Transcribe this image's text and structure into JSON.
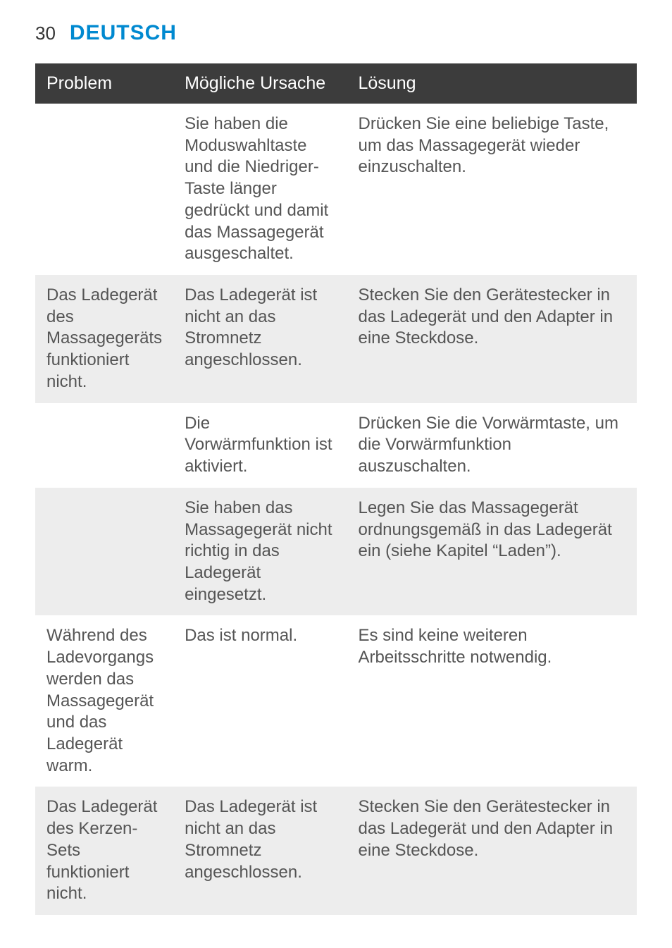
{
  "header": {
    "page_number": "30",
    "section_title": "DEUTSCH",
    "title_color": "#0089d0",
    "page_number_color": "#333333",
    "title_fontsize": 30,
    "page_number_fontsize": 26
  },
  "table": {
    "header_bg": "#3c3c3c",
    "header_text_color": "#ffffff",
    "header_fontsize": 25,
    "body_fontsize": 24,
    "body_text_color": "#555555",
    "row_light_bg": "#ffffff",
    "row_dark_bg": "#ededed",
    "columns": [
      {
        "key": "problem",
        "label": "Problem",
        "width": "22%"
      },
      {
        "key": "cause",
        "label": "Mögliche Ursache",
        "width": "29%"
      },
      {
        "key": "solution",
        "label": "Lösung",
        "width": "49%"
      }
    ],
    "rows": [
      {
        "shade": "light",
        "problem": "",
        "cause": "Sie haben die Moduswahltaste und die Niedriger-Taste länger gedrückt und damit das Massagegerät ausgeschaltet.",
        "solution": "Drücken Sie eine beliebige Taste, um das Massagegerät wieder einzuschalten."
      },
      {
        "shade": "dark",
        "problem": "Das Ladegerät des Massagegeräts funktioniert nicht.",
        "cause": "Das Ladegerät ist nicht an das Stromnetz angeschlossen.",
        "solution": "Stecken Sie den Gerätestecker in das Ladegerät und den Adapter in eine Steckdose."
      },
      {
        "shade": "light",
        "problem": "",
        "cause": "Die Vorwärmfunktion ist aktiviert.",
        "solution": "Drücken Sie die Vorwärmtaste, um die Vorwärmfunktion auszuschalten."
      },
      {
        "shade": "dark",
        "problem": "",
        "cause": "Sie haben das Massagegerät nicht richtig in das Ladegerät eingesetzt.",
        "solution": "Legen Sie das Massagegerät ordnungsgemäß in das Ladegerät ein (siehe Kapitel “Laden”)."
      },
      {
        "shade": "light",
        "problem": "Während des Ladevorgangs werden das Massagegerät und das Ladegerät warm.",
        "cause": "Das ist normal.",
        "solution": "Es sind keine weiteren Arbeitsschritte notwendig."
      },
      {
        "shade": "dark",
        "problem": "Das Ladegerät des Kerzen-Sets funktioniert nicht.",
        "cause": "Das Ladegerät ist nicht an das Stromnetz angeschlossen.",
        "solution": "Stecken Sie den Gerätestecker in das Ladegerät und den Adapter in eine Steckdose."
      }
    ]
  }
}
